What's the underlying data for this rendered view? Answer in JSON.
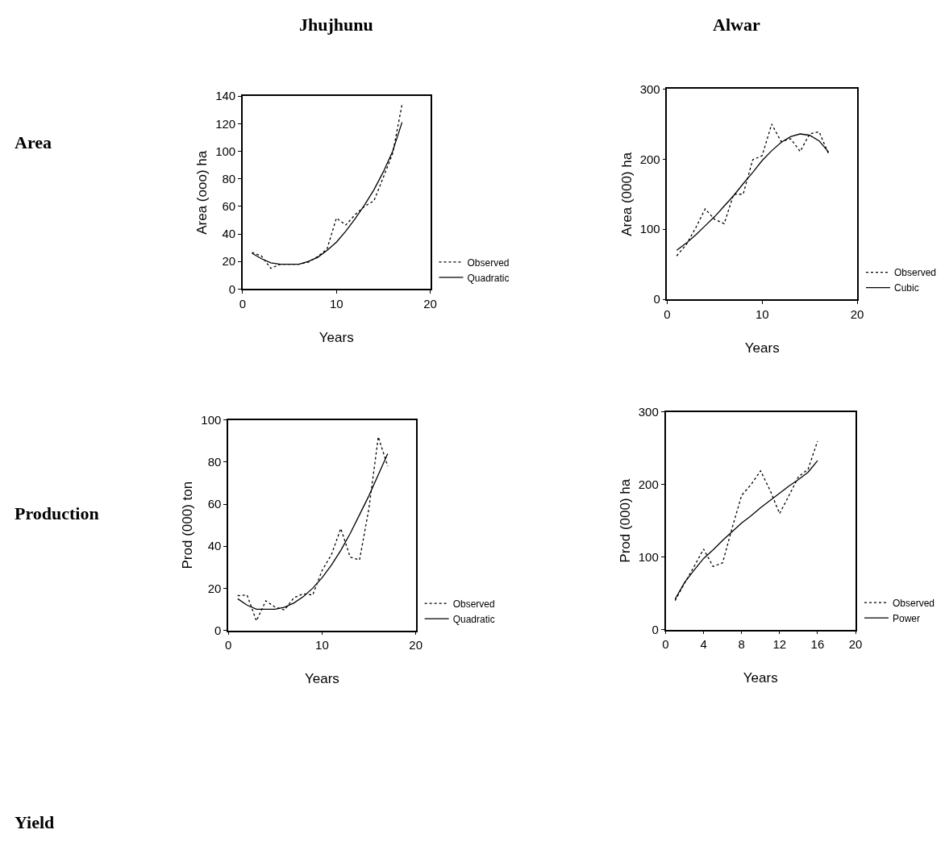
{
  "chart_data": [
    {
      "type": "line",
      "title": "Jhujhunu",
      "xlabel": "Years",
      "ylabel": "Area (ooo) ha",
      "annotations": [
        "Area"
      ],
      "legend": "bottom right",
      "x": [
        1,
        2,
        3,
        4,
        5,
        6,
        7,
        8,
        9,
        10,
        11,
        12,
        13,
        14,
        15,
        16,
        17
      ],
      "xlim": [
        0,
        20
      ],
      "xticks": [
        0,
        10,
        20
      ],
      "ylim": [
        0,
        140
      ],
      "yticks": [
        0,
        20,
        40,
        60,
        80,
        100,
        120,
        140
      ],
      "series": [
        {
          "name": "Observed",
          "color": "#000000",
          "line_style": "dotted",
          "values": [
            26.6,
            24,
            15,
            18,
            18,
            18,
            19.5,
            23.6,
            29,
            51.5,
            46.5,
            54,
            60,
            64,
            81,
            98.5,
            134
          ]
        },
        {
          "name": "Quadratic",
          "color": "#000000",
          "line_style": "solid",
          "values": [
            26,
            22,
            19,
            18,
            18,
            18,
            20,
            23,
            28,
            34,
            42,
            51,
            61,
            72,
            85,
            100,
            121
          ]
        }
      ]
    },
    {
      "type": "line",
      "title": "Alwar",
      "xlabel": "Years",
      "ylabel": "Area (000) ha",
      "legend": "bottom right",
      "x": [
        1,
        2,
        3,
        4,
        5,
        6,
        7,
        8,
        9,
        10,
        11,
        12,
        13,
        14,
        15,
        16,
        17
      ],
      "xlim": [
        0,
        20
      ],
      "xticks": [
        0,
        10,
        20
      ],
      "ylim": [
        0,
        300
      ],
      "yticks": [
        0,
        100,
        200,
        300
      ],
      "series": [
        {
          "name": "Observed",
          "color": "#000000",
          "line_style": "dotted",
          "values": [
            62,
            78,
            102,
            129,
            114,
            108,
            150,
            150,
            199,
            205,
            250,
            225,
            229,
            211,
            236,
            239,
            207
          ]
        },
        {
          "name": "Cubic",
          "color": "#000000",
          "line_style": "solid",
          "values": [
            70,
            80,
            92,
            105,
            118,
            133,
            148,
            165,
            181,
            198,
            212,
            224,
            232,
            236,
            234,
            226,
            210
          ]
        }
      ]
    },
    {
      "type": "line",
      "xlabel": "Years",
      "ylabel": "Prod (000) ton",
      "annotations": [
        "Production",
        "Yield"
      ],
      "legend": "bottom right",
      "x": [
        1,
        2,
        3,
        4,
        5,
        6,
        7,
        8,
        9,
        10,
        11,
        12,
        13,
        14,
        15,
        16,
        17
      ],
      "xlim": [
        0,
        20
      ],
      "xticks": [
        0,
        10,
        20
      ],
      "ylim": [
        0,
        100
      ],
      "yticks": [
        0,
        20,
        40,
        60,
        80,
        100
      ],
      "series": [
        {
          "name": "Observed",
          "color": "#000000",
          "line_style": "dotted",
          "values": [
            16.5,
            16.8,
            4.5,
            14,
            11,
            9.7,
            15.5,
            17.4,
            16.8,
            28.4,
            36,
            48.4,
            34.8,
            33.5,
            58,
            92,
            78
          ]
        },
        {
          "name": "Quadratic",
          "color": "#000000",
          "line_style": "solid",
          "values": [
            15,
            12,
            10,
            10,
            10,
            11,
            13,
            16,
            20,
            25,
            31,
            38,
            46,
            55,
            64,
            74,
            84
          ]
        }
      ]
    },
    {
      "type": "line",
      "xlabel": "Years",
      "ylabel": "Prod (000) ha",
      "legend": "bottom right",
      "x": [
        1,
        2,
        3,
        4,
        5,
        6,
        7,
        8,
        9,
        10,
        11,
        12,
        13,
        14,
        15,
        16
      ],
      "xlim": [
        0,
        20
      ],
      "xticks": [
        0,
        4,
        8,
        12,
        16,
        20
      ],
      "ylim": [
        0,
        300
      ],
      "yticks": [
        0,
        100,
        200,
        300
      ],
      "series": [
        {
          "name": "Observed",
          "color": "#000000",
          "line_style": "dotted",
          "values": [
            40,
            64,
            87,
            111,
            87,
            92,
            140,
            185,
            200,
            219,
            192,
            160,
            185,
            211,
            221,
            260
          ]
        },
        {
          "name": "Power",
          "color": "#000000",
          "line_style": "solid",
          "values": [
            42,
            65,
            82,
            98,
            110,
            123,
            135,
            147,
            157,
            168,
            178,
            188,
            198,
            207,
            217,
            233
          ]
        }
      ]
    }
  ]
}
